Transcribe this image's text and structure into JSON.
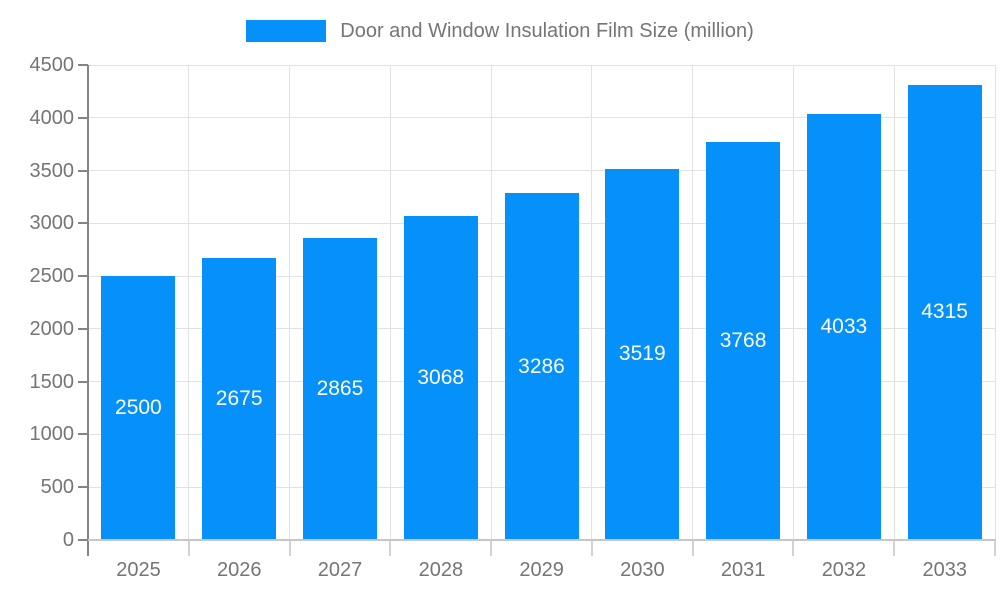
{
  "legend": {
    "label": "Door and Window Insulation Film Size (million)"
  },
  "colors": {
    "bar": "#0590FA",
    "bar_label": "#ffffff",
    "axis_text": "#757575",
    "grid": "#e2e2e2",
    "y_axis_line": "#848484",
    "x_axis_line": "#c6c6c6"
  },
  "chart_data": {
    "type": "bar",
    "title": "Door and Window Insulation Film Size (million)",
    "categories": [
      "2025",
      "2026",
      "2027",
      "2028",
      "2029",
      "2030",
      "2031",
      "2032",
      "2033"
    ],
    "values": [
      2500,
      2675,
      2865,
      3068,
      3286,
      3519,
      3768,
      4033,
      4315
    ],
    "bar_labels": [
      "2500",
      "2675",
      "2865",
      "3068",
      "3286",
      "3519",
      "3768",
      "4033",
      "4315"
    ],
    "xlabel": "",
    "ylabel": "",
    "ylim": [
      0,
      4500
    ],
    "yticks": [
      0,
      500,
      1000,
      1500,
      2000,
      2500,
      3000,
      3500,
      4000,
      4500
    ],
    "grid": true,
    "legend_position": "top-center",
    "bar_value_label_position": "inside-center"
  }
}
